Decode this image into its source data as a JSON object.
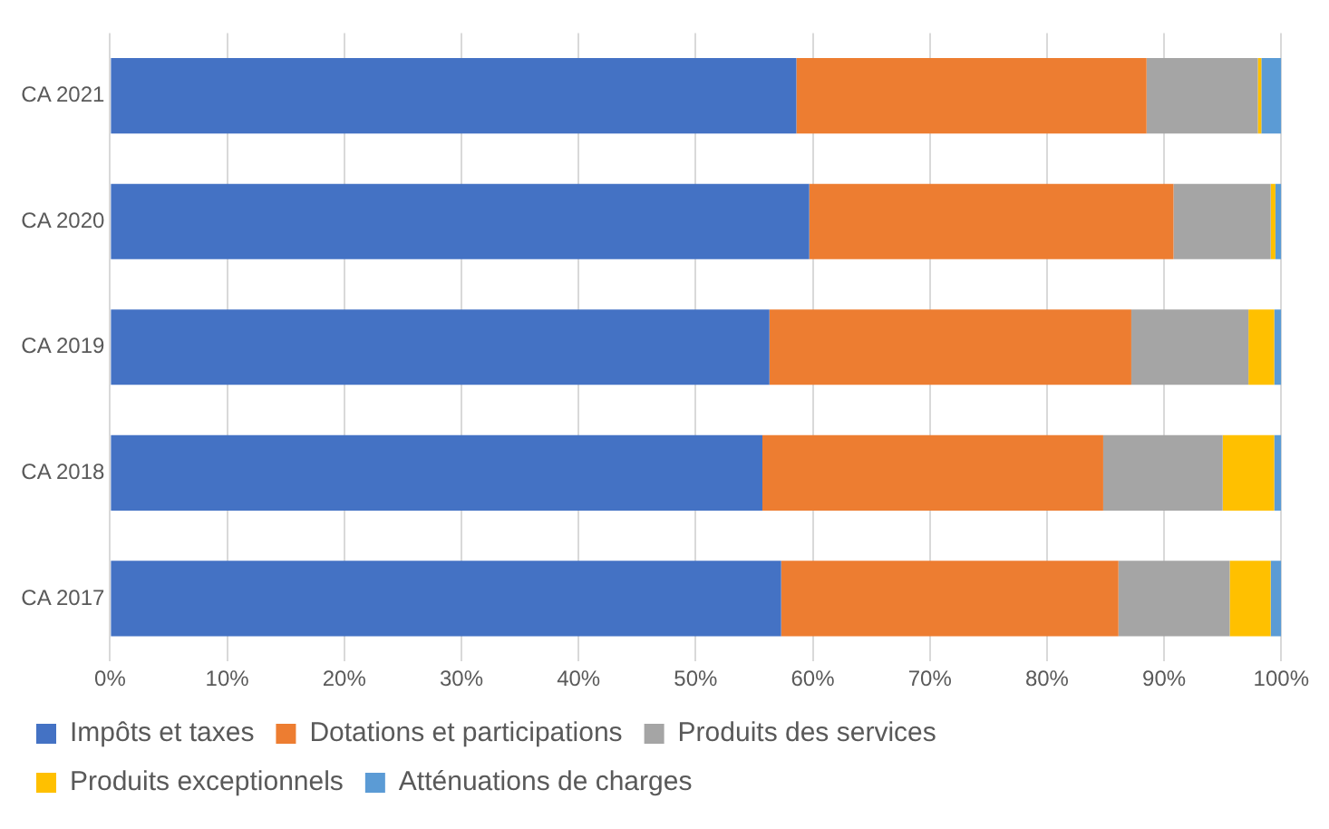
{
  "chart_data": {
    "type": "bar",
    "orientation": "horizontal",
    "stacked": true,
    "categories": [
      "CA 2021",
      "CA 2020",
      "CA 2019",
      "CA 2018",
      "CA 2017"
    ],
    "series": [
      {
        "name": "Impôts et taxes",
        "color": "#4472c4",
        "values": [
          58.6,
          59.7,
          56.3,
          55.7,
          57.3
        ]
      },
      {
        "name": "Dotations et participations",
        "color": "#ed7d31",
        "values": [
          29.9,
          31.1,
          30.9,
          29.1,
          28.8
        ]
      },
      {
        "name": "Produits des services",
        "color": "#a5a5a5",
        "values": [
          9.5,
          8.3,
          10.0,
          10.2,
          9.5
        ]
      },
      {
        "name": "Produits exceptionnels",
        "color": "#ffc000",
        "values": [
          0.3,
          0.4,
          2.2,
          4.4,
          3.5
        ]
      },
      {
        "name": "Atténuations de charges",
        "color": "#5b9bd5",
        "values": [
          1.7,
          0.5,
          0.6,
          0.6,
          0.9
        ]
      }
    ],
    "xlim": [
      0,
      100
    ],
    "xticks": [
      {
        "value": 0,
        "label": "0%"
      },
      {
        "value": 10,
        "label": "10%"
      },
      {
        "value": 20,
        "label": "20%"
      },
      {
        "value": 30,
        "label": "30%"
      },
      {
        "value": 40,
        "label": "40%"
      },
      {
        "value": 50,
        "label": "50%"
      },
      {
        "value": 60,
        "label": "60%"
      },
      {
        "value": 70,
        "label": "70%"
      },
      {
        "value": 80,
        "label": "80%"
      },
      {
        "value": 90,
        "label": "90%"
      },
      {
        "value": 100,
        "label": "100%"
      }
    ],
    "grid": "x",
    "legend": "bottom"
  }
}
